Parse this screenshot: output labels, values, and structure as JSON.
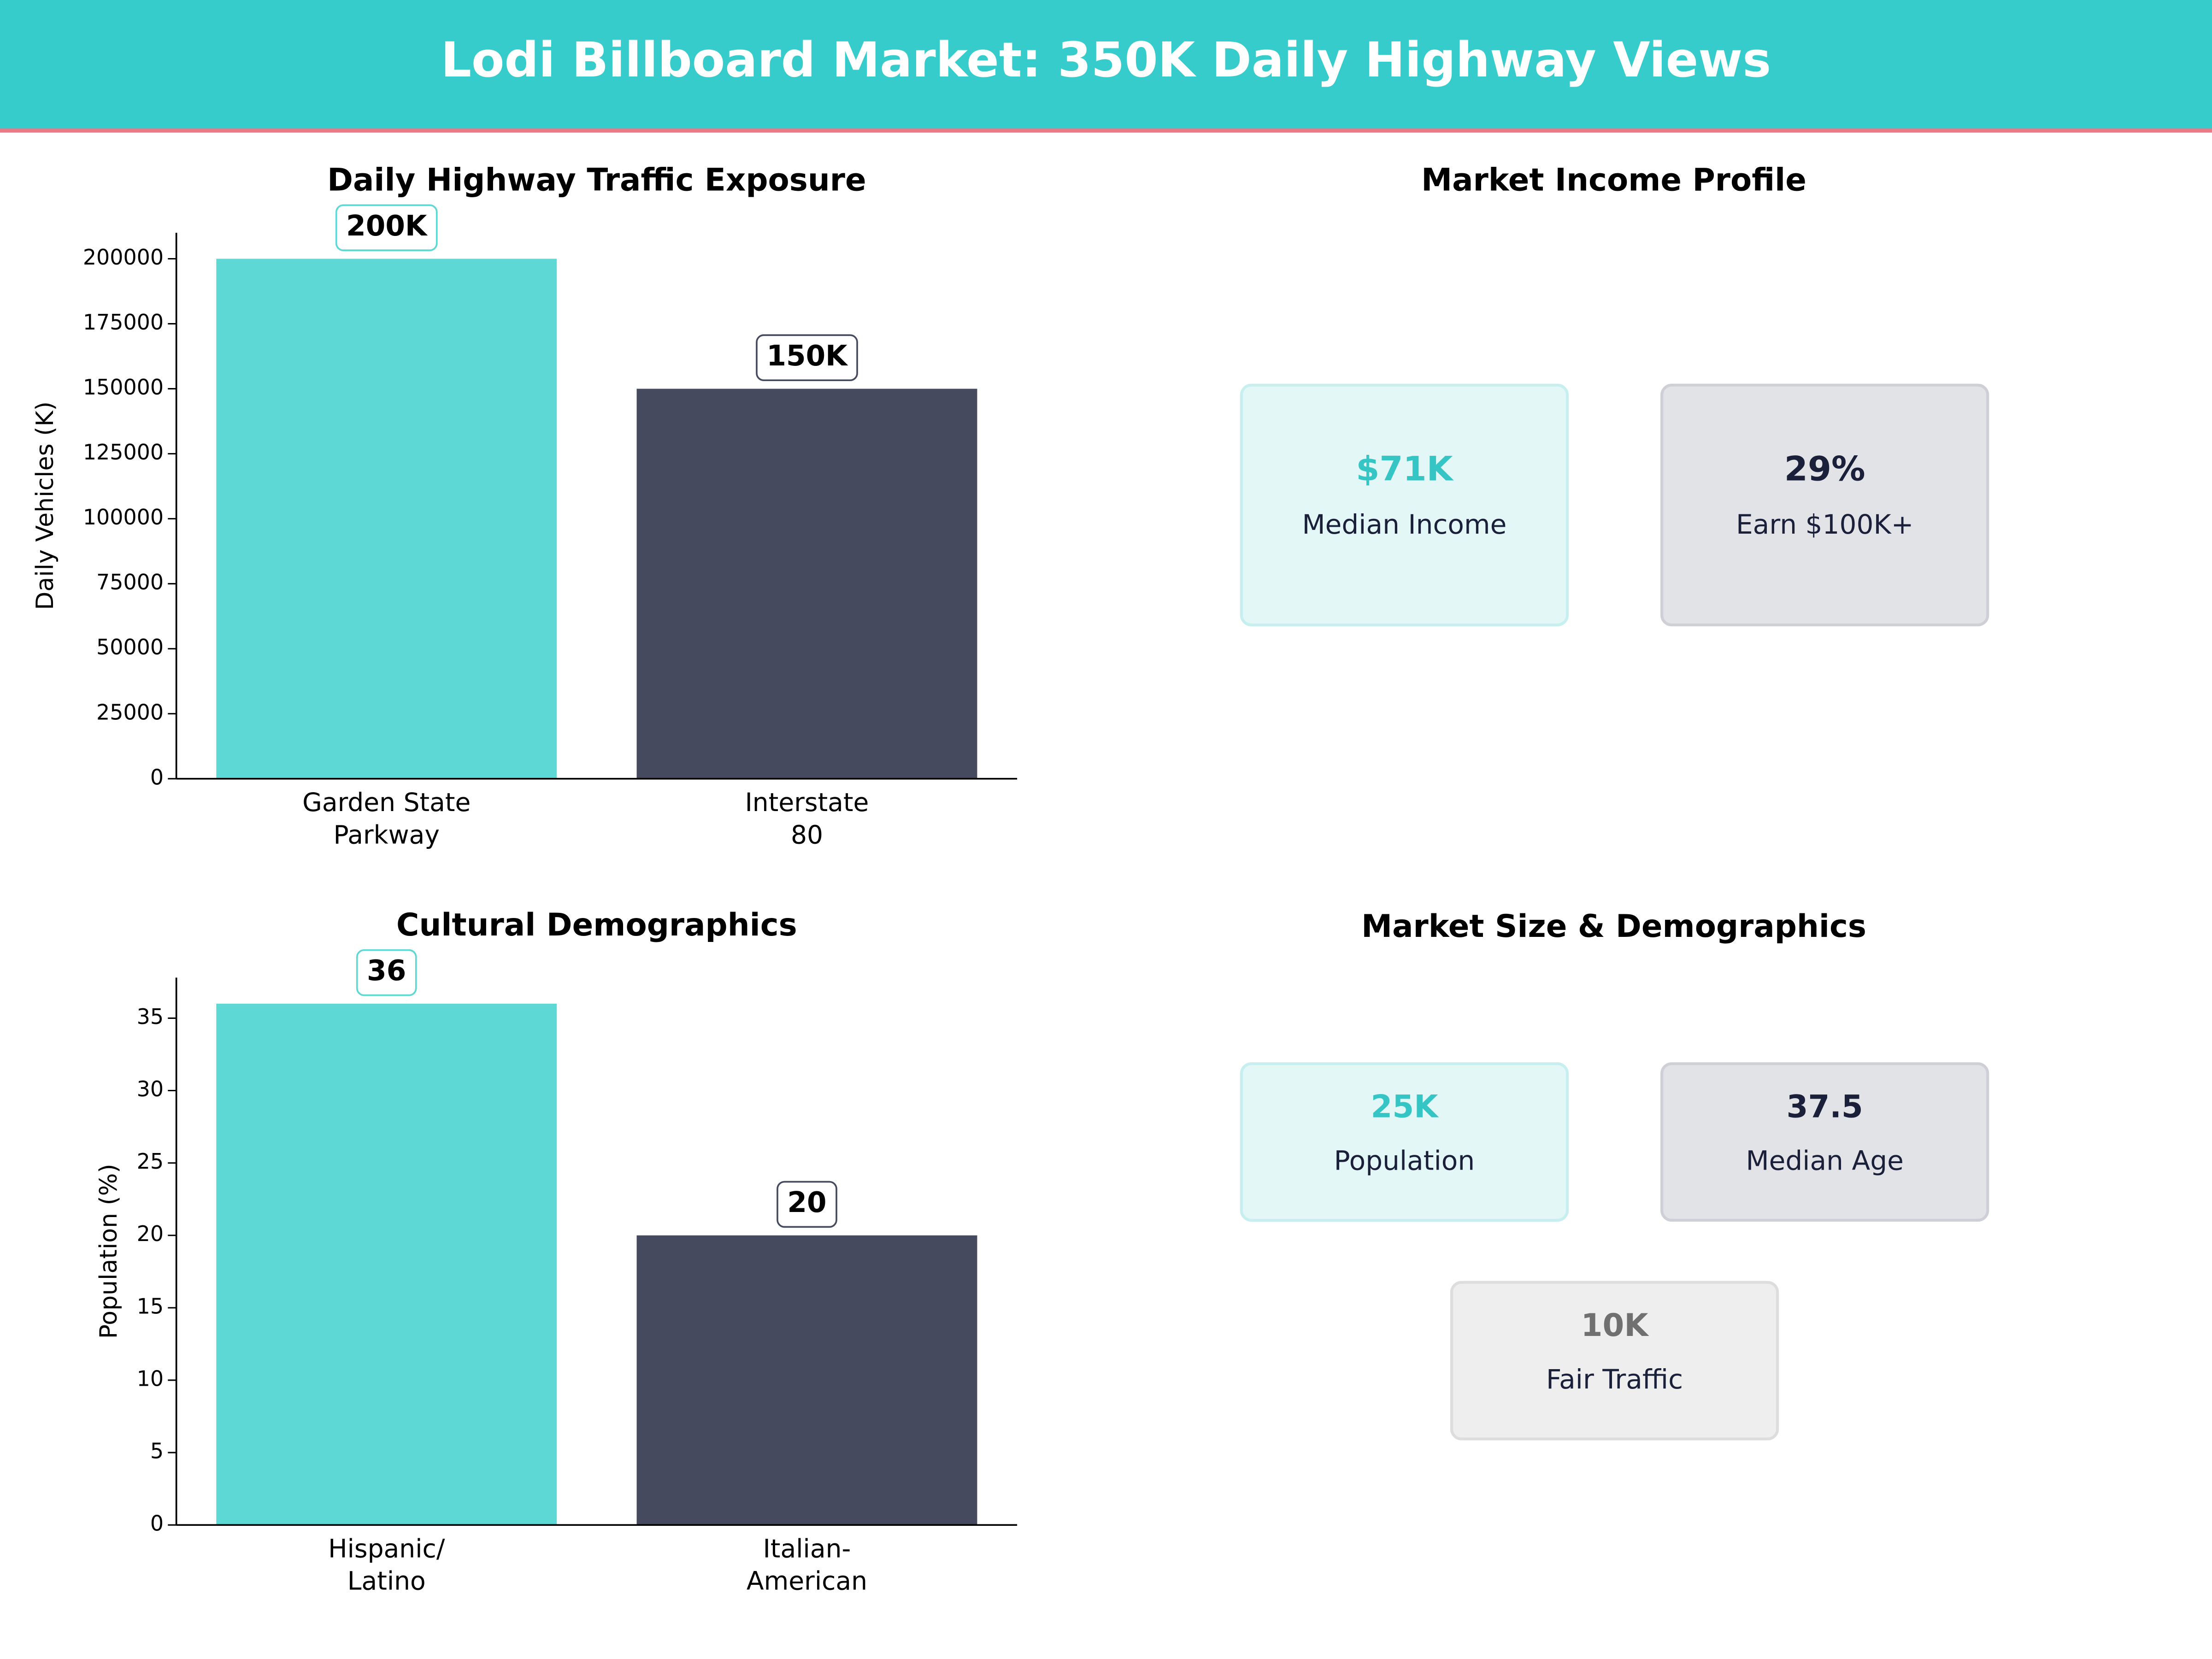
{
  "header": {
    "title": "Lodi Billboard Market: 350K Daily Highway Views"
  },
  "chart_data": [
    {
      "type": "bar",
      "title": "Daily Highway Traffic Exposure",
      "ylabel": "Daily Vehicles (K)",
      "categories": [
        "Garden State\nParkway",
        "Interstate\n80"
      ],
      "values": [
        200000,
        150000
      ],
      "value_labels": [
        "200K",
        "150K"
      ],
      "colors": [
        "#5dd8d4",
        "#464a5f"
      ],
      "ylim": [
        0,
        210000
      ],
      "yticks": [
        0,
        25000,
        50000,
        75000,
        100000,
        125000,
        150000,
        175000,
        200000
      ]
    },
    {
      "type": "bar",
      "title": "Cultural Demographics",
      "ylabel": "Population (%)",
      "categories": [
        "Hispanic/\nLatino",
        "Italian-\nAmerican"
      ],
      "values": [
        36,
        20
      ],
      "colors": [
        "#5dd8d4",
        "#464a5f"
      ],
      "ylim": [
        0,
        37.8
      ],
      "yticks": [
        0,
        5,
        10,
        15,
        20,
        25,
        30,
        35
      ]
    }
  ],
  "income_panel": {
    "title": "Market Income Profile",
    "cards": [
      {
        "value": "$71K",
        "label": "Median Income"
      },
      {
        "value": "29%",
        "label": "Earn $100K+"
      }
    ]
  },
  "size_panel": {
    "title": "Market Size & Demographics",
    "cards": [
      {
        "value": "25K",
        "label": "Population"
      },
      {
        "value": "37.5",
        "label": "Median Age"
      },
      {
        "value": "10K",
        "label": "Fair Traffic"
      }
    ]
  }
}
